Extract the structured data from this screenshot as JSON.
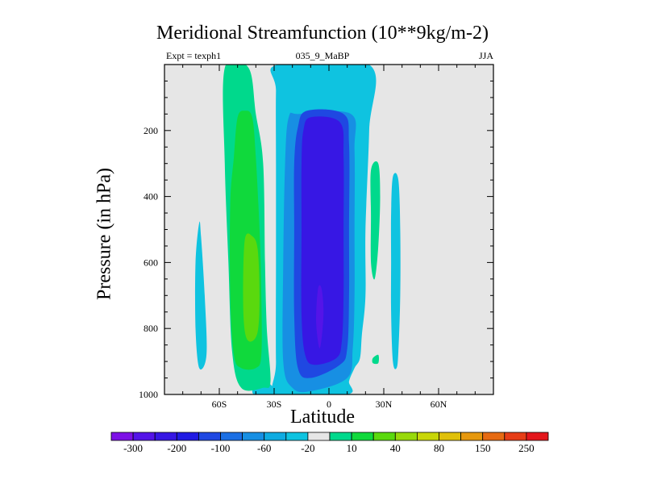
{
  "title": "Meridional Streamfunction (10**9kg/m-2)",
  "subtitle_left": "Expt = texph1",
  "subtitle_center": "035_9_MaBP",
  "subtitle_right": "JJA",
  "chart_data": {
    "type": "heatmap",
    "title": "Meridional Streamfunction (10**9kg/m-2)",
    "xlabel": "Latitude",
    "ylabel": "Pressure (in hPa)",
    "xlim": [
      -90,
      90
    ],
    "ylim": [
      1000,
      0
    ],
    "x_ticks": [
      {
        "value": -60,
        "label": "60S"
      },
      {
        "value": -30,
        "label": "30S"
      },
      {
        "value": 0,
        "label": "0"
      },
      {
        "value": 30,
        "label": "30N"
      },
      {
        "value": 60,
        "label": "60N"
      }
    ],
    "y_ticks": [
      {
        "value": 200,
        "label": "200"
      },
      {
        "value": 400,
        "label": "400"
      },
      {
        "value": 600,
        "label": "600"
      },
      {
        "value": 800,
        "label": "800"
      },
      {
        "value": 1000,
        "label": "1000"
      }
    ],
    "background_color": "#e6e6e6",
    "colorbar": {
      "colors": [
        "#7d10e6",
        "#5414e8",
        "#3717e4",
        "#211be3",
        "#1f48e2",
        "#1b6fe4",
        "#178fe3",
        "#0fabe1",
        "#0fc3e0",
        "#e6e6e6",
        "#00d98c",
        "#10d93c",
        "#5ad90e",
        "#98d90a",
        "#c8d608",
        "#e0c00a",
        "#e6980e",
        "#e66a12",
        "#e63d16",
        "#e3161b"
      ],
      "labels": [
        "-300",
        "-200",
        "-100",
        "-60",
        "-20",
        "10",
        "40",
        "80",
        "150",
        "250"
      ]
    },
    "contours": [
      {
        "value": -20,
        "color": "#0fc3e0",
        "polygon": [
          [
            -41,
            1000
          ],
          [
            -40,
            960
          ],
          [
            -38,
            940
          ],
          [
            -30,
            980
          ],
          [
            -25,
            1000
          ]
        ]
      },
      {
        "value": 10,
        "color": "#00d98c",
        "polygon": [
          [
            -57,
            10
          ],
          [
            -44,
            10
          ],
          [
            -40,
            150
          ],
          [
            -36,
            300
          ],
          [
            -35,
            600
          ],
          [
            -34,
            800
          ],
          [
            -32,
            960
          ],
          [
            -36,
            980
          ],
          [
            -48,
            980
          ],
          [
            -53,
            870
          ],
          [
            -55,
            600
          ],
          [
            -57,
            300
          ]
        ]
      },
      {
        "value": 40,
        "color": "#10d93c",
        "polygon": [
          [
            -54,
            420
          ],
          [
            -52,
            280
          ],
          [
            -50,
            160
          ],
          [
            -46,
            140
          ],
          [
            -42,
            160
          ],
          [
            -40,
            280
          ],
          [
            -38,
            500
          ],
          [
            -37,
            700
          ],
          [
            -37,
            880
          ],
          [
            -40,
            920
          ],
          [
            -48,
            920
          ],
          [
            -52,
            880
          ],
          [
            -54,
            700
          ]
        ]
      },
      {
        "value": 80,
        "color": "#5ad90e",
        "polygon": [
          [
            -46,
            530
          ],
          [
            -42,
            520
          ],
          [
            -39,
            560
          ],
          [
            -38,
            700
          ],
          [
            -39,
            810
          ],
          [
            -43,
            840
          ],
          [
            -46,
            810
          ],
          [
            -47,
            700
          ]
        ]
      },
      {
        "value": -20,
        "color": "#0fc3e0",
        "polygon": [
          [
            -71,
            480
          ],
          [
            -70,
            520
          ],
          [
            -68,
            700
          ],
          [
            -67,
            880
          ],
          [
            -71,
            920
          ],
          [
            -73,
            800
          ],
          [
            -73,
            600
          ]
        ]
      },
      {
        "value": -20,
        "color": "#0fc3e0",
        "polygon": [
          [
            -28,
            0
          ],
          [
            22,
            0
          ],
          [
            22,
            200
          ],
          [
            20,
            500
          ],
          [
            20,
            700
          ],
          [
            18,
            820
          ],
          [
            17,
            890
          ],
          [
            14,
            920
          ],
          [
            11,
            960
          ],
          [
            10,
            1000
          ],
          [
            -28,
            1000
          ],
          [
            -29,
            900
          ],
          [
            -29,
            600
          ],
          [
            -29,
            300
          ],
          [
            -29,
            80
          ]
        ]
      },
      {
        "value": -60,
        "color": "#178fe3",
        "polygon": [
          [
            -22,
            160
          ],
          [
            -16,
            150
          ],
          [
            12,
            150
          ],
          [
            14,
            260
          ],
          [
            14,
            500
          ],
          [
            14,
            700
          ],
          [
            13,
            860
          ],
          [
            10,
            950
          ],
          [
            -10,
            990
          ],
          [
            -20,
            980
          ],
          [
            -25,
            900
          ],
          [
            -25,
            600
          ],
          [
            -24,
            300
          ]
        ]
      },
      {
        "value": -100,
        "color": "#1f48e2",
        "polygon": [
          [
            -17,
            190
          ],
          [
            -12,
            140
          ],
          [
            8,
            150
          ],
          [
            11,
            240
          ],
          [
            11,
            500
          ],
          [
            11,
            700
          ],
          [
            10,
            860
          ],
          [
            6,
            910
          ],
          [
            -10,
            950
          ],
          [
            -17,
            920
          ],
          [
            -19,
            760
          ],
          [
            -19,
            500
          ],
          [
            -19,
            300
          ]
        ]
      },
      {
        "value": -200,
        "color": "#3717e4",
        "polygon": [
          [
            -14,
            200
          ],
          [
            -10,
            160
          ],
          [
            6,
            175
          ],
          [
            8,
            280
          ],
          [
            8,
            500
          ],
          [
            8,
            700
          ],
          [
            7,
            840
          ],
          [
            4,
            890
          ],
          [
            -8,
            910
          ],
          [
            -13,
            880
          ],
          [
            -15,
            760
          ],
          [
            -15,
            500
          ],
          [
            -15,
            300
          ]
        ]
      },
      {
        "value": -300,
        "color": "#5414e8",
        "polygon": [
          [
            -6,
            680
          ],
          [
            -4,
            680
          ],
          [
            -3,
            760
          ],
          [
            -5,
            860
          ],
          [
            -7,
            780
          ]
        ]
      },
      {
        "value": 10,
        "color": "#00d98c",
        "polygon": [
          [
            23,
            320
          ],
          [
            27,
            300
          ],
          [
            28,
            400
          ],
          [
            27,
            550
          ],
          [
            25,
            650
          ],
          [
            23,
            600
          ],
          [
            23,
            460
          ]
        ]
      },
      {
        "value": 10,
        "color": "#00d98c",
        "polygon": [
          [
            24,
            890
          ],
          [
            27,
            880
          ],
          [
            27,
            905
          ],
          [
            24,
            905
          ]
        ]
      },
      {
        "value": -20,
        "color": "#0fc3e0",
        "polygon": [
          [
            35,
            340
          ],
          [
            38,
            350
          ],
          [
            39,
            500
          ],
          [
            39,
            700
          ],
          [
            38,
            870
          ],
          [
            37,
            920
          ],
          [
            35,
            900
          ],
          [
            34,
            750
          ],
          [
            34,
            600
          ],
          [
            34,
            450
          ]
        ]
      }
    ]
  },
  "colors": {
    "plot_background": "#e6e6e6",
    "frame": "#000000"
  }
}
